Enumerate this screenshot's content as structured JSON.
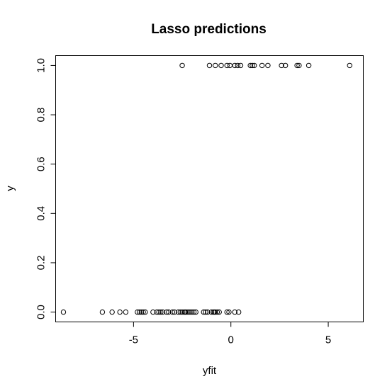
{
  "chart_data": {
    "type": "scatter",
    "title": "Lasso predictions",
    "xlabel": "yfit",
    "ylabel": "y",
    "xlim": [
      -9.0,
      6.8
    ],
    "ylim": [
      -0.04,
      1.04
    ],
    "xticks": [
      -5,
      0,
      5
    ],
    "xtick_labels": [
      "-5",
      "0",
      "5"
    ],
    "yticks": [
      0.0,
      0.2,
      0.4,
      0.6,
      0.8,
      1.0
    ],
    "ytick_labels": [
      "0.0",
      "0.2",
      "0.4",
      "0.6",
      "0.8",
      "1.0"
    ],
    "grid": false,
    "series": [
      {
        "name": "y = 0",
        "x": [
          -8.6,
          -6.6,
          -6.1,
          -5.7,
          -5.4,
          -4.8,
          -4.7,
          -4.6,
          -4.5,
          -4.4,
          -4.0,
          -3.8,
          -3.7,
          -3.6,
          -3.5,
          -3.3,
          -3.2,
          -3.0,
          -2.9,
          -2.7,
          -2.6,
          -2.5,
          -2.4,
          -2.35,
          -2.3,
          -2.2,
          -2.1,
          -2.0,
          -1.9,
          -1.8,
          -1.4,
          -1.3,
          -1.2,
          -1.0,
          -0.9,
          -0.85,
          -0.8,
          -0.7,
          -0.6,
          -0.2,
          -0.1,
          0.2,
          0.4
        ],
        "y": [
          0,
          0,
          0,
          0,
          0,
          0,
          0,
          0,
          0,
          0,
          0,
          0,
          0,
          0,
          0,
          0,
          0,
          0,
          0,
          0,
          0,
          0,
          0,
          0,
          0,
          0,
          0,
          0,
          0,
          0,
          0,
          0,
          0,
          0,
          0,
          0,
          0,
          0,
          0,
          0,
          0,
          0,
          0
        ]
      },
      {
        "name": "y = 1",
        "x": [
          -2.5,
          -1.1,
          -0.8,
          -0.5,
          -0.2,
          -0.05,
          0.2,
          0.35,
          0.5,
          1.0,
          1.1,
          1.2,
          1.6,
          1.9,
          2.6,
          2.8,
          3.4,
          3.5,
          4.0,
          6.1
        ],
        "y": [
          1,
          1,
          1,
          1,
          1,
          1,
          1,
          1,
          1,
          1,
          1,
          1,
          1,
          1,
          1,
          1,
          1,
          1,
          1,
          1
        ]
      }
    ]
  }
}
